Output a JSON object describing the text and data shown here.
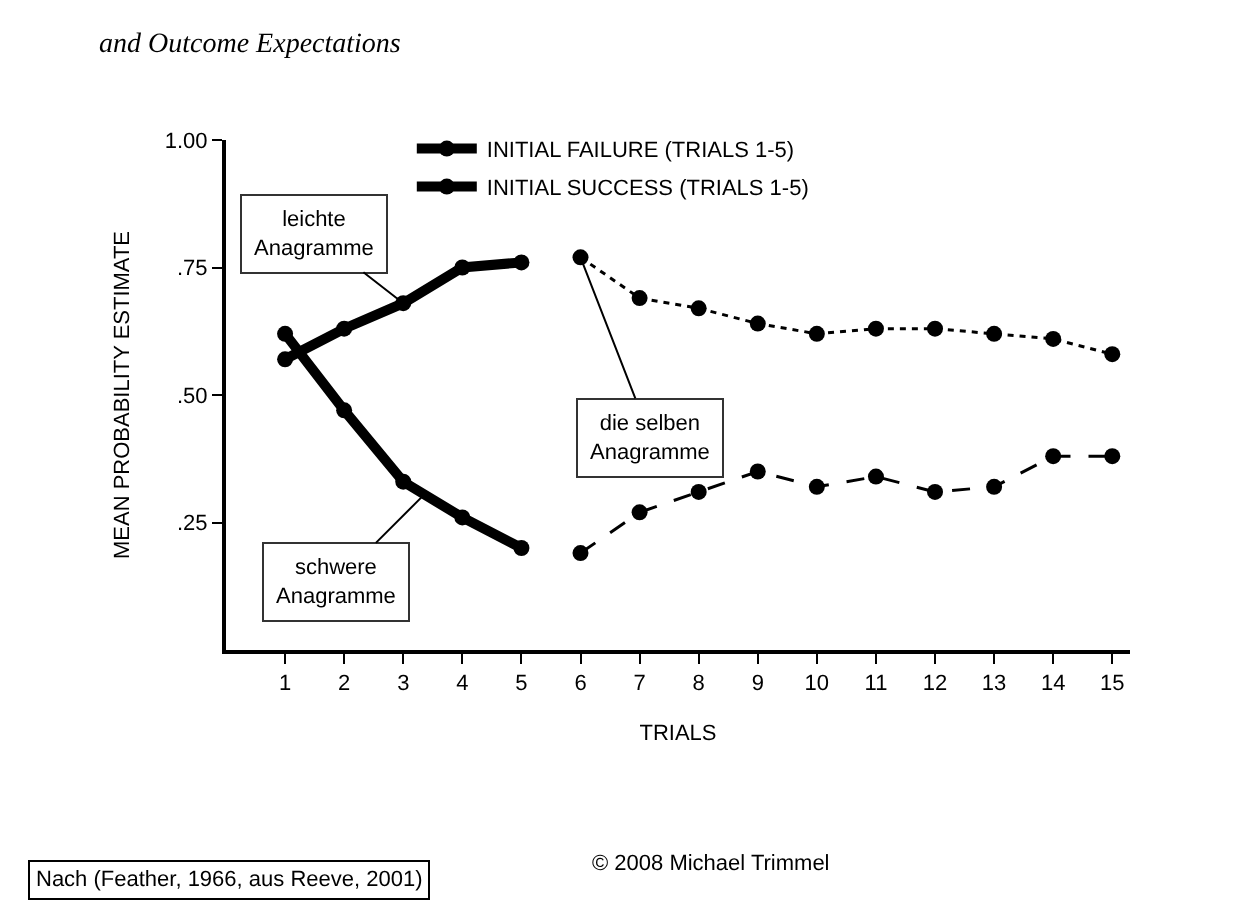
{
  "chart_data": {
    "type": "line",
    "title": "and Outcome Expectations",
    "xlabel": "TRIALS",
    "ylabel": "MEAN PROBABILITY ESTIMATE",
    "xlim": [
      0,
      15.3
    ],
    "xticks": [
      1,
      2,
      3,
      4,
      5,
      6,
      7,
      8,
      9,
      10,
      11,
      12,
      13,
      14,
      15
    ],
    "ylim": [
      0,
      1.0
    ],
    "yticks": [
      {
        "value": 0.25,
        "label": ".25"
      },
      {
        "value": 0.5,
        "label": ".50"
      },
      {
        "value": 0.75,
        "label": ".75"
      },
      {
        "value": 1.0,
        "label": "1.00"
      }
    ],
    "legend": "top",
    "marker": "circle",
    "series": [
      {
        "name": "INITIAL FAILURE (TRIALS 1-5)",
        "color": "#000000",
        "line_style": "solid",
        "x": [
          1,
          2,
          3,
          4,
          5
        ],
        "values": [
          0.62,
          0.47,
          0.33,
          0.26,
          0.2
        ]
      },
      {
        "name": "INITIAL SUCCESS (TRIALS 1-5)",
        "color": "#000000",
        "line_style": "solid",
        "x": [
          1,
          2,
          3,
          4,
          5
        ],
        "values": [
          0.57,
          0.63,
          0.68,
          0.75,
          0.76
        ]
      },
      {
        "color": "#000000",
        "line_style": "dashed",
        "x": [
          6,
          7,
          8,
          9,
          10,
          11,
          12,
          13,
          14,
          15
        ],
        "values": [
          0.19,
          0.27,
          0.31,
          0.35,
          0.32,
          0.34,
          0.31,
          0.32,
          0.38,
          0.38
        ]
      },
      {
        "color": "#000000",
        "line_style": "dotted",
        "x": [
          6,
          7,
          8,
          9,
          10,
          11,
          12,
          13,
          14,
          15
        ],
        "values": [
          0.77,
          0.69,
          0.67,
          0.64,
          0.62,
          0.63,
          0.63,
          0.62,
          0.61,
          0.58
        ]
      }
    ],
    "annotations": [
      {
        "text": "leichte\nAnagramme",
        "x": 3,
        "y": 0.68
      },
      {
        "text": "schwere\nAnagramme",
        "x": 3.4,
        "y": 0.31
      },
      {
        "text": "die selben\nAnagramme",
        "x": 6,
        "y": 0.77
      },
      "Nach (Feather, 1966, aus Reeve, 2001)",
      "© 2008 Michael Trimmel"
    ]
  }
}
